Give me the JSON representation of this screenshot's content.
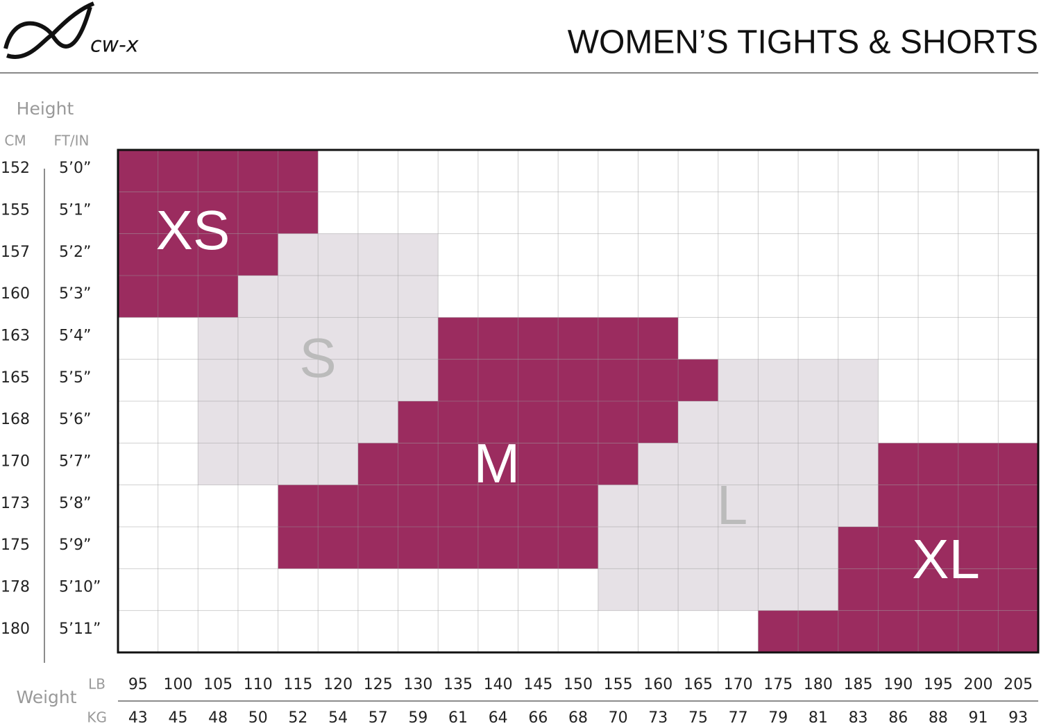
{
  "header": {
    "logo": "cw-x",
    "title": "WOMEN’S TIGHTS & SHORTS"
  },
  "height": {
    "label": "Height",
    "cm_label": "CM",
    "ftin_label": "FT/IN",
    "cm": [
      "152",
      "155",
      "157",
      "160",
      "163",
      "165",
      "168",
      "170",
      "173",
      "175",
      "178",
      "180"
    ],
    "ftin": [
      "5’0”",
      "5’1”",
      "5’2”",
      "5’3”",
      "5’4”",
      "5’5”",
      "5’6”",
      "5’7”",
      "5’8”",
      "5’9”",
      "5’10”",
      "5’11”"
    ]
  },
  "weight": {
    "label": "Weight",
    "lb_label": "LB",
    "kg_label": "KG",
    "lb": [
      "95",
      "100",
      "105",
      "110",
      "115",
      "120",
      "125",
      "130",
      "135",
      "140",
      "145",
      "150",
      "155",
      "160",
      "165",
      "170",
      "175",
      "180",
      "185",
      "190",
      "195",
      "200",
      "205"
    ],
    "kg": [
      "43",
      "45",
      "48",
      "50",
      "52",
      "54",
      "57",
      "59",
      "61",
      "64",
      "66",
      "68",
      "70",
      "73",
      "75",
      "77",
      "79",
      "81",
      "83",
      "86",
      "88",
      "91",
      "93"
    ]
  },
  "sizes": [
    "XS",
    "S",
    "M",
    "L",
    "XL"
  ]
}
